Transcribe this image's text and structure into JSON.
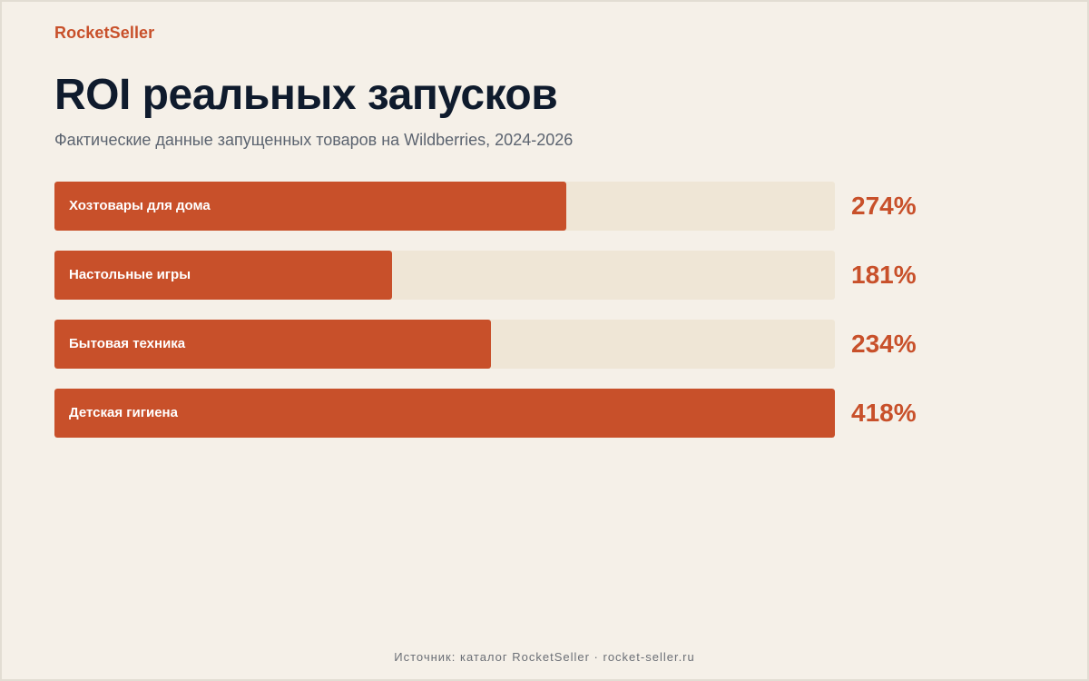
{
  "brand": "RocketSeller",
  "title": "ROI реальных запусков",
  "subtitle": "Фактические данные запущенных товаров на Wildberries, 2024-2026",
  "footer": "Источник: каталог RocketSeller · rocket-seller.ru",
  "colors": {
    "accent": "#c8502a",
    "track": "#efe6d6",
    "background": "#f5f0e8",
    "title": "#0f1b2d"
  },
  "chart_data": {
    "type": "bar",
    "orientation": "horizontal",
    "categories": [
      "Хозтовары для дома",
      "Настольные игры",
      "Бытовая техника",
      "Детская гигиена"
    ],
    "values": [
      274,
      181,
      234,
      418
    ],
    "value_labels": [
      "274%",
      "181%",
      "234%",
      "418%"
    ],
    "unit": "%",
    "xlim": [
      0,
      418
    ],
    "grid": false,
    "legend": "none"
  }
}
